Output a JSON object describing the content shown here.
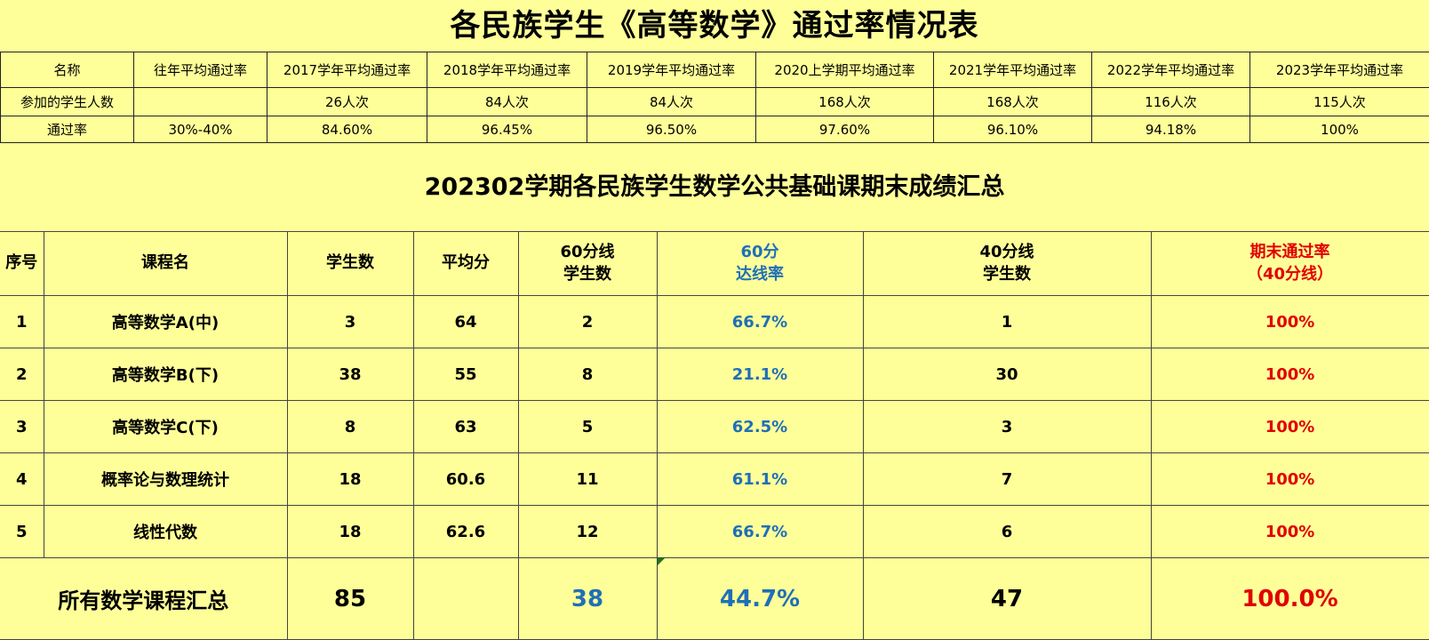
{
  "title1": "各民族学生《高等数学》通过率情况表",
  "pass_table": {
    "headers": [
      "名称",
      "往年平均通过率",
      "2017学年平均通过率",
      "2018学年平均通过率",
      "2019学年平均通过率",
      "2020上学期平均通过率",
      "2021学年平均通过率",
      "2022学年平均通过率",
      "2023学年平均通过率"
    ],
    "rows": [
      [
        "参加的学生人数",
        "",
        "26人次",
        "84人次",
        "84人次",
        "168人次",
        "168人次",
        "116人次",
        "115人次"
      ],
      [
        "通过率",
        "30%-40%",
        "84.60%",
        "96.45%",
        "96.50%",
        "97.60%",
        "96.10%",
        "94.18%",
        "100%"
      ]
    ]
  },
  "title2": "202302学期各民族学生数学公共基础课期末成绩汇总",
  "grade_table": {
    "headers": {
      "seq": "序号",
      "course": "课程名",
      "students": "学生数",
      "avg": "平均分",
      "pass60_line1": "60分线",
      "pass60_line2": "学生数",
      "rate60_line1": "60分",
      "rate60_line2": "达线率",
      "pass40_line1": "40分线",
      "pass40_line2": "学生数",
      "final_line1": "期末通过率",
      "final_line2": "（40分线）"
    },
    "rows": [
      {
        "seq": "1",
        "course": "高等数学A(中)",
        "students": "3",
        "avg": "64",
        "pass60": "2",
        "rate60": "66.7%",
        "pass40": "1",
        "final": "100%"
      },
      {
        "seq": "2",
        "course": "高等数学B(下)",
        "students": "38",
        "avg": "55",
        "pass60": "8",
        "rate60": "21.1%",
        "pass40": "30",
        "final": "100%"
      },
      {
        "seq": "3",
        "course": "高等数学C(下)",
        "students": "8",
        "avg": "63",
        "pass60": "5",
        "rate60": "62.5%",
        "pass40": "3",
        "final": "100%"
      },
      {
        "seq": "4",
        "course": "概率论与数理统计",
        "students": "18",
        "avg": "60.6",
        "pass60": "11",
        "rate60": "61.1%",
        "pass40": "7",
        "final": "100%"
      },
      {
        "seq": "5",
        "course": "线性代数",
        "students": "18",
        "avg": "62.6",
        "pass60": "12",
        "rate60": "66.7%",
        "pass40": "6",
        "final": "100%"
      }
    ],
    "total": {
      "label": "所有数学课程汇总",
      "students": "85",
      "avg": "",
      "pass60": "38",
      "rate60": "44.7%",
      "pass40": "47",
      "final": "100.0%"
    }
  },
  "colors": {
    "background": "#ffff99",
    "blue": "#1f6fb8",
    "red": "#e00000"
  }
}
